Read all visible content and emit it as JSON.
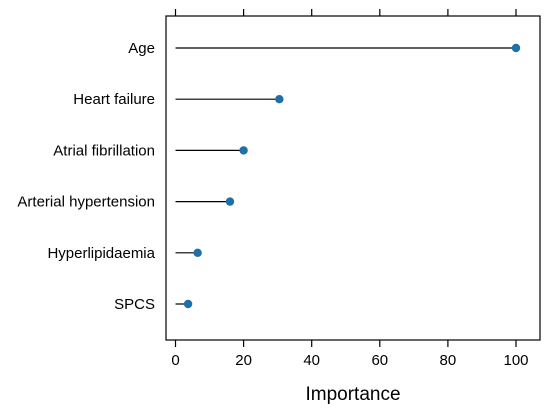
{
  "chart_data": {
    "type": "lollipop",
    "categories": [
      "Age",
      "Heart failure",
      "Atrial fibrillation",
      "Arterial hypertension",
      "Hyperlipidaemia",
      "SPCS"
    ],
    "values": [
      100,
      30.5,
      20,
      16,
      6.5,
      3.7
    ],
    "xlabel": "Importance",
    "xlim": [
      -2,
      106
    ],
    "xticks": [
      0,
      20,
      40,
      60,
      80,
      100
    ],
    "xtick_labels": [
      "0",
      "20",
      "40",
      "60",
      "80",
      "100"
    ],
    "grid": false,
    "marker_color": "#1f6fa8",
    "line_color": "#000000"
  }
}
